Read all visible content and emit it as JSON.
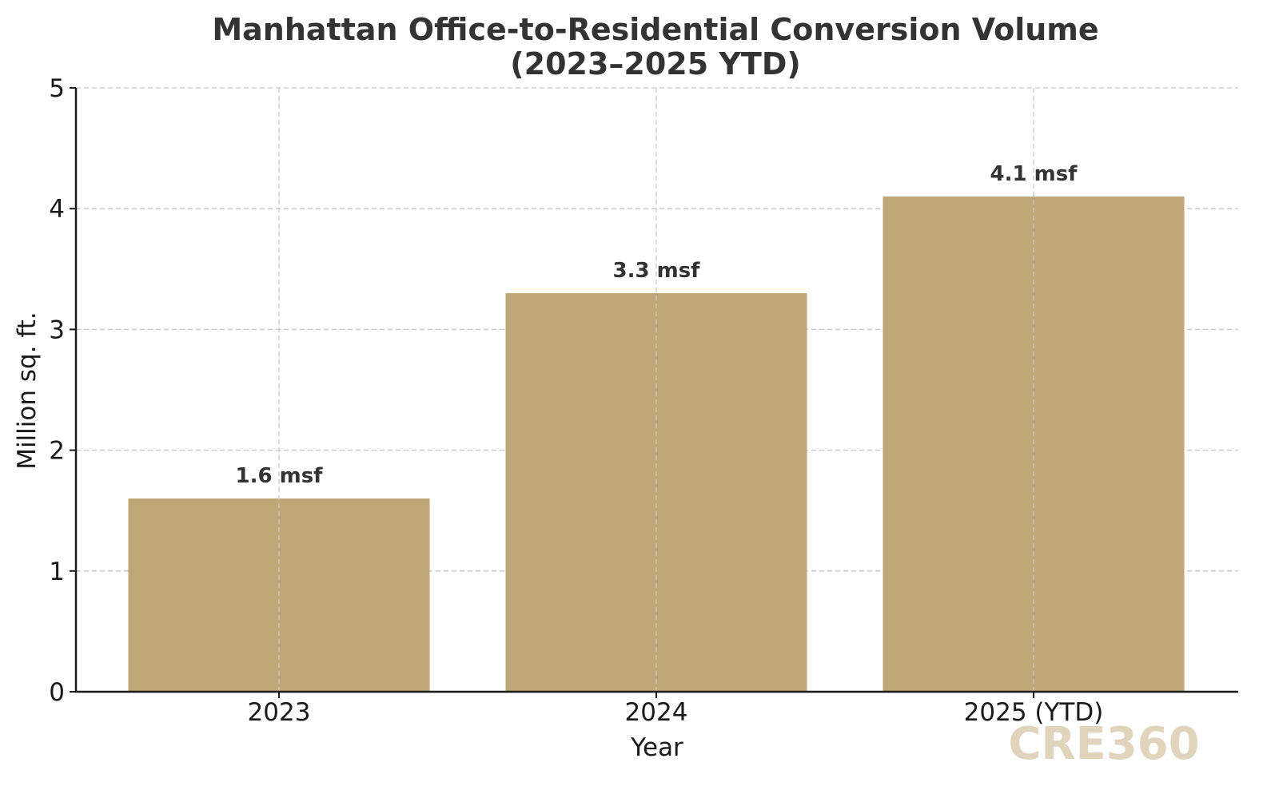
{
  "chart_data": {
    "type": "bar",
    "title_line1": "Manhattan Office-to-Residential Conversion Volume",
    "title_line2": "(2023–2025 YTD)",
    "xlabel": "Year",
    "ylabel": "Million sq. ft.",
    "categories": [
      "2023",
      "2024",
      "2025 (YTD)"
    ],
    "values": [
      1.6,
      3.3,
      4.1
    ],
    "data_labels": [
      "1.6 msf",
      "3.3 msf",
      "4.1 msf"
    ],
    "ylim": [
      0,
      5
    ],
    "yticks": [
      0,
      1,
      2,
      3,
      4,
      5
    ],
    "ytick_labels": [
      "0",
      "1",
      "2",
      "3",
      "4",
      "5"
    ],
    "grid": true,
    "bar_color": "#bfa677",
    "watermark": "CRE360",
    "watermark_color": "#e0d4bd"
  }
}
